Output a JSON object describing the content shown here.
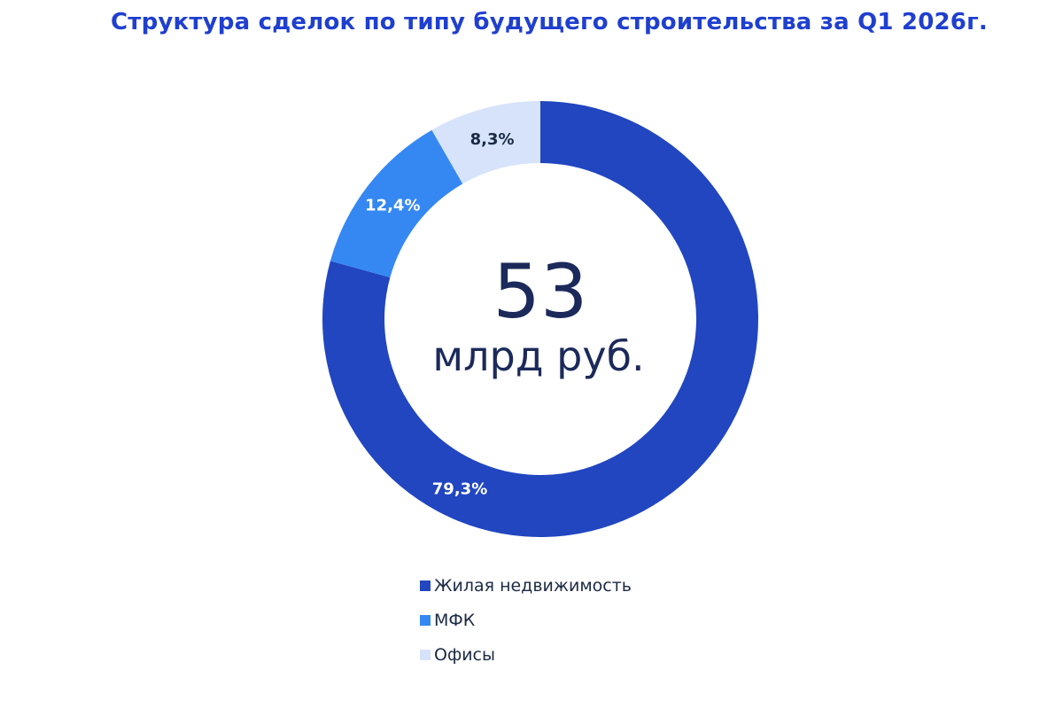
{
  "chart_data": {
    "type": "pie",
    "title": "Структура сделок по типу будущего строительства за Q1 2026г.",
    "center_value": "53",
    "center_unit": "млрд руб.",
    "categories": [
      "Жилая недвижимость",
      "МФК",
      "Офисы"
    ],
    "values": [
      79.3,
      12.4,
      8.3
    ],
    "value_labels": [
      "79,3%",
      "12,4%",
      "8,3%"
    ],
    "colors": [
      "#2146c0",
      "#3588f2",
      "#d6e3fa"
    ],
    "label_colors": [
      "#ffffff",
      "#ffffff",
      "#1b2a44"
    ],
    "legend_position": "bottom"
  }
}
